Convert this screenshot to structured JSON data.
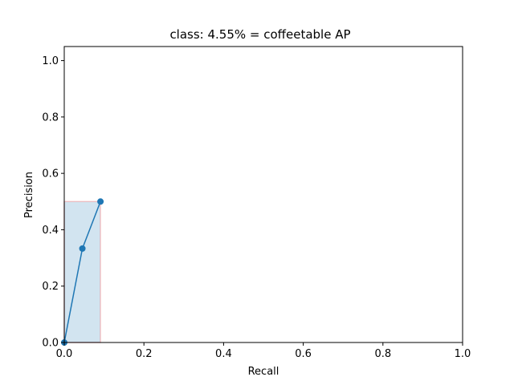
{
  "chart_data": {
    "type": "line",
    "title": "class: 4.55% = coffeetable AP",
    "xlabel": "Recall",
    "ylabel": "Precision",
    "xlim": [
      0.0,
      1.0
    ],
    "ylim": [
      0.0,
      1.05
    ],
    "xticks": [
      "0.0",
      "0.2",
      "0.4",
      "0.6",
      "0.8",
      "1.0"
    ],
    "yticks": [
      "0.0",
      "0.2",
      "0.4",
      "0.6",
      "0.8",
      "1.0"
    ],
    "grid": false,
    "series": [
      {
        "x": [
          0.0,
          0.0455,
          0.0909
        ],
        "y": [
          0.0,
          0.3333,
          0.5
        ],
        "marker": "circle",
        "color": "#1f77b4"
      }
    ],
    "fill_area": {
      "x": [
        0.0,
        0.0,
        0.0909,
        0.0909
      ],
      "y": [
        0.0,
        0.5,
        0.5,
        0.0
      ],
      "fill_color": "#1f77b4",
      "edge_color": "#ff0000"
    }
  }
}
